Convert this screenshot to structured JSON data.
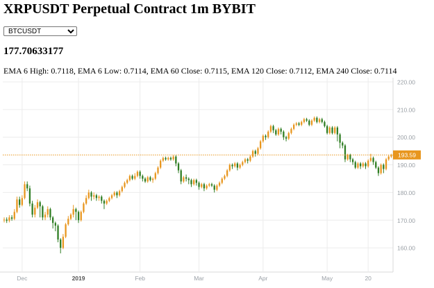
{
  "header": {
    "title": "XRPUSDT Perpetual Contract 1m BYBIT",
    "price": "177.70633177",
    "ema_text": "EMA 6 High: 0.7118, EMA 6 Low: 0.7114, EMA 60 Close: 0.7115, EMA 120 Close: 0.7112, EMA 240 Close: 0.7114"
  },
  "symbol_select": {
    "selected": "BTCUSDT"
  },
  "colors": {
    "up": "#e8961e",
    "down": "#2e7d22",
    "last_price": "#e8961e",
    "grid": "#ececec",
    "axis_text": "#9aa0a6"
  },
  "chart_data": {
    "type": "candlestick",
    "x_ticks": [
      {
        "label": "Dec",
        "bold": false,
        "index": 7
      },
      {
        "label": "2019",
        "bold": true,
        "index": 29
      },
      {
        "label": "Feb",
        "bold": false,
        "index": 53
      },
      {
        "label": "Mar",
        "bold": false,
        "index": 76
      },
      {
        "label": "Apr",
        "bold": false,
        "index": 101
      },
      {
        "label": "May",
        "bold": false,
        "index": 126
      },
      {
        "label": "20",
        "bold": false,
        "index": 142
      }
    ],
    "y_ticks": [
      "220.00",
      "210.00",
      "200.00",
      "190.00",
      "180.00",
      "170.00",
      "160.00"
    ],
    "y_tick_values": [
      220,
      210,
      200,
      190,
      180,
      170,
      160
    ],
    "ylim": [
      151.5,
      221.5
    ],
    "last_price": {
      "label": "193.59",
      "value": 193.59
    },
    "grid": true,
    "candles": [
      [
        170.0,
        170.2,
        171.0,
        169.2
      ],
      [
        170.2,
        169.8,
        171.0,
        169.0
      ],
      [
        169.8,
        171.0,
        171.8,
        169.2
      ],
      [
        171.0,
        170.5,
        171.8,
        169.8
      ],
      [
        170.5,
        173.0,
        174.0,
        170.0
      ],
      [
        173.0,
        177.5,
        178.5,
        172.5
      ],
      [
        177.5,
        175.5,
        178.5,
        174.5
      ],
      [
        175.5,
        178.0,
        179.0,
        175.0
      ],
      [
        178.0,
        183.0,
        184.0,
        177.5
      ],
      [
        183.0,
        181.5,
        184.0,
        180.5
      ],
      [
        181.5,
        176.0,
        182.5,
        175.0
      ],
      [
        176.0,
        172.0,
        177.0,
        171.0
      ],
      [
        172.0,
        174.5,
        175.5,
        171.0
      ],
      [
        174.5,
        176.5,
        177.5,
        174.0
      ],
      [
        176.5,
        175.0,
        177.0,
        171.0
      ],
      [
        175.0,
        171.0,
        175.5,
        170.0
      ],
      [
        171.0,
        172.0,
        173.0,
        170.0
      ],
      [
        172.0,
        174.0,
        175.0,
        171.0
      ],
      [
        174.0,
        171.0,
        174.5,
        170.0
      ],
      [
        171.0,
        169.0,
        171.5,
        167.0
      ],
      [
        169.0,
        168.0,
        169.5,
        166.0
      ],
      [
        168.0,
        163.0,
        168.5,
        162.0
      ],
      [
        163.0,
        160.0,
        163.5,
        158.0
      ],
      [
        160.0,
        164.0,
        165.0,
        159.5
      ],
      [
        164.0,
        168.5,
        169.0,
        163.5
      ],
      [
        168.5,
        170.5,
        171.5,
        168.0
      ],
      [
        170.5,
        172.0,
        172.5,
        170.0
      ],
      [
        172.0,
        174.0,
        175.5,
        171.0
      ],
      [
        174.0,
        173.0,
        174.5,
        170.0
      ],
      [
        173.0,
        170.0,
        173.5,
        169.0
      ],
      [
        170.0,
        173.0,
        173.5,
        169.5
      ],
      [
        173.0,
        176.0,
        176.5,
        172.5
      ],
      [
        176.0,
        178.0,
        179.0,
        175.5
      ],
      [
        178.0,
        180.0,
        181.0,
        177.5
      ],
      [
        180.0,
        178.5,
        180.5,
        177.0
      ],
      [
        178.5,
        179.0,
        180.0,
        177.5
      ],
      [
        179.0,
        178.0,
        179.5,
        177.0
      ],
      [
        178.0,
        178.5,
        179.0,
        177.0
      ],
      [
        178.5,
        177.0,
        179.0,
        176.0
      ],
      [
        177.0,
        176.0,
        177.5,
        174.0
      ],
      [
        176.0,
        177.0,
        177.5,
        175.5
      ],
      [
        177.0,
        178.0,
        178.5,
        176.5
      ],
      [
        178.0,
        179.0,
        179.5,
        177.5
      ],
      [
        179.0,
        180.0,
        180.5,
        178.5
      ],
      [
        180.0,
        179.0,
        180.5,
        178.0
      ],
      [
        179.0,
        180.5,
        181.0,
        178.5
      ],
      [
        180.5,
        182.0,
        182.5,
        180.0
      ],
      [
        182.0,
        183.5,
        184.0,
        181.5
      ],
      [
        183.5,
        184.5,
        185.0,
        183.0
      ],
      [
        184.5,
        186.0,
        186.5,
        184.0
      ],
      [
        186.0,
        185.0,
        186.5,
        184.5
      ],
      [
        185.0,
        186.0,
        187.0,
        184.5
      ],
      [
        186.0,
        187.5,
        188.0,
        185.5
      ],
      [
        187.5,
        186.0,
        188.0,
        185.0
      ],
      [
        186.0,
        185.0,
        186.5,
        184.0
      ],
      [
        185.0,
        184.0,
        185.5,
        183.5
      ],
      [
        184.0,
        185.5,
        186.0,
        183.5
      ],
      [
        185.5,
        184.5,
        186.0,
        184.0
      ],
      [
        184.5,
        185.0,
        185.5,
        183.5
      ],
      [
        185.0,
        187.0,
        187.5,
        184.5
      ],
      [
        187.0,
        189.0,
        189.5,
        186.5
      ],
      [
        189.0,
        191.5,
        192.0,
        188.5
      ],
      [
        191.5,
        192.5,
        193.0,
        191.0
      ],
      [
        192.5,
        192.0,
        193.0,
        191.5
      ],
      [
        192.0,
        192.5,
        193.0,
        191.5
      ],
      [
        192.5,
        192.0,
        193.0,
        191.5
      ],
      [
        192.0,
        193.0,
        193.5,
        191.5
      ],
      [
        193.0,
        190.5,
        193.5,
        189.5
      ],
      [
        190.5,
        188.0,
        191.0,
        187.0
      ],
      [
        188.0,
        184.0,
        188.5,
        183.0
      ],
      [
        184.0,
        185.5,
        186.0,
        183.5
      ],
      [
        185.5,
        185.0,
        186.5,
        184.0
      ],
      [
        185.0,
        184.5,
        185.5,
        183.0
      ],
      [
        184.5,
        183.0,
        185.0,
        182.0
      ],
      [
        183.0,
        184.5,
        185.0,
        182.5
      ],
      [
        184.5,
        183.5,
        185.0,
        182.5
      ],
      [
        183.5,
        182.0,
        184.0,
        181.0
      ],
      [
        182.0,
        183.0,
        183.5,
        181.5
      ],
      [
        183.0,
        181.5,
        183.5,
        180.5
      ],
      [
        181.5,
        182.5,
        183.0,
        181.0
      ],
      [
        182.5,
        183.0,
        183.5,
        182.0
      ],
      [
        183.0,
        182.5,
        183.5,
        182.0
      ],
      [
        182.5,
        181.0,
        183.0,
        180.0
      ],
      [
        181.0,
        182.5,
        183.0,
        180.5
      ],
      [
        182.5,
        183.5,
        184.0,
        182.0
      ],
      [
        183.5,
        185.0,
        185.5,
        183.0
      ],
      [
        185.0,
        186.0,
        186.5,
        184.5
      ],
      [
        186.0,
        188.0,
        188.5,
        185.5
      ],
      [
        188.0,
        190.0,
        190.5,
        187.5
      ],
      [
        190.0,
        189.5,
        190.5,
        188.5
      ],
      [
        189.5,
        190.5,
        191.0,
        189.0
      ],
      [
        190.5,
        189.0,
        191.0,
        188.0
      ],
      [
        189.0,
        190.0,
        190.5,
        188.5
      ],
      [
        190.0,
        191.0,
        191.5,
        189.5
      ],
      [
        191.0,
        192.0,
        192.5,
        190.5
      ],
      [
        192.0,
        191.5,
        192.5,
        190.5
      ],
      [
        191.5,
        193.0,
        193.5,
        191.0
      ],
      [
        193.0,
        195.0,
        195.5,
        192.5
      ],
      [
        195.0,
        194.0,
        195.5,
        193.0
      ],
      [
        194.0,
        196.0,
        196.5,
        193.5
      ],
      [
        196.0,
        198.5,
        199.0,
        195.5
      ],
      [
        198.5,
        200.5,
        201.0,
        198.0
      ],
      [
        200.5,
        200.0,
        201.0,
        199.0
      ],
      [
        200.0,
        202.0,
        202.5,
        199.5
      ],
      [
        202.0,
        204.0,
        204.5,
        201.5
      ],
      [
        204.0,
        202.5,
        204.5,
        201.5
      ],
      [
        202.5,
        201.0,
        203.0,
        200.5
      ],
      [
        201.0,
        203.0,
        203.5,
        200.5
      ],
      [
        203.0,
        202.0,
        203.5,
        201.0
      ],
      [
        202.0,
        200.0,
        202.5,
        199.0
      ],
      [
        200.0,
        199.5,
        200.5,
        198.5
      ],
      [
        199.5,
        201.5,
        202.0,
        199.0
      ],
      [
        201.5,
        203.0,
        203.5,
        201.0
      ],
      [
        203.0,
        204.5,
        205.0,
        202.5
      ],
      [
        204.5,
        205.0,
        205.5,
        204.0
      ],
      [
        205.0,
        204.5,
        205.5,
        204.0
      ],
      [
        204.5,
        205.5,
        206.0,
        204.0
      ],
      [
        205.5,
        206.5,
        207.0,
        205.0
      ],
      [
        206.5,
        206.0,
        207.0,
        205.5
      ],
      [
        206.0,
        204.5,
        206.5,
        204.0
      ],
      [
        204.5,
        206.0,
        206.5,
        204.0
      ],
      [
        206.0,
        207.0,
        207.5,
        205.5
      ],
      [
        207.0,
        205.5,
        207.5,
        205.0
      ],
      [
        205.5,
        206.5,
        207.0,
        205.0
      ],
      [
        206.5,
        205.5,
        207.0,
        205.0
      ],
      [
        205.5,
        204.0,
        206.0,
        203.5
      ],
      [
        204.0,
        201.5,
        204.5,
        201.0
      ],
      [
        201.5,
        203.5,
        204.0,
        201.0
      ],
      [
        203.5,
        201.5,
        204.0,
        201.0
      ],
      [
        201.5,
        203.5,
        204.0,
        201.0
      ],
      [
        203.5,
        201.0,
        204.0,
        198.5
      ],
      [
        201.0,
        198.0,
        201.5,
        196.0
      ],
      [
        198.0,
        197.0,
        198.5,
        196.0
      ],
      [
        197.0,
        192.0,
        197.5,
        191.0
      ],
      [
        192.0,
        193.5,
        194.0,
        191.5
      ],
      [
        193.5,
        192.0,
        194.0,
        191.0
      ],
      [
        192.0,
        191.0,
        192.5,
        190.0
      ],
      [
        191.0,
        189.0,
        191.5,
        188.5
      ],
      [
        189.0,
        190.5,
        191.0,
        188.5
      ],
      [
        190.5,
        189.5,
        191.0,
        188.5
      ],
      [
        189.5,
        190.5,
        191.0,
        189.0
      ],
      [
        190.5,
        189.5,
        191.0,
        188.5
      ],
      [
        189.5,
        191.5,
        192.0,
        189.0
      ],
      [
        191.5,
        192.5,
        194.0,
        191.0
      ],
      [
        192.5,
        191.0,
        193.0,
        190.0
      ],
      [
        191.0,
        189.0,
        191.5,
        188.5
      ],
      [
        189.0,
        187.0,
        189.5,
        186.0
      ],
      [
        187.0,
        190.0,
        190.5,
        186.5
      ],
      [
        190.0,
        188.5,
        190.5,
        187.0
      ],
      [
        188.5,
        192.0,
        192.5,
        188.0
      ],
      [
        192.0,
        193.0,
        193.5,
        191.5
      ],
      [
        193.0,
        193.59,
        194.0,
        192.5
      ]
    ]
  }
}
